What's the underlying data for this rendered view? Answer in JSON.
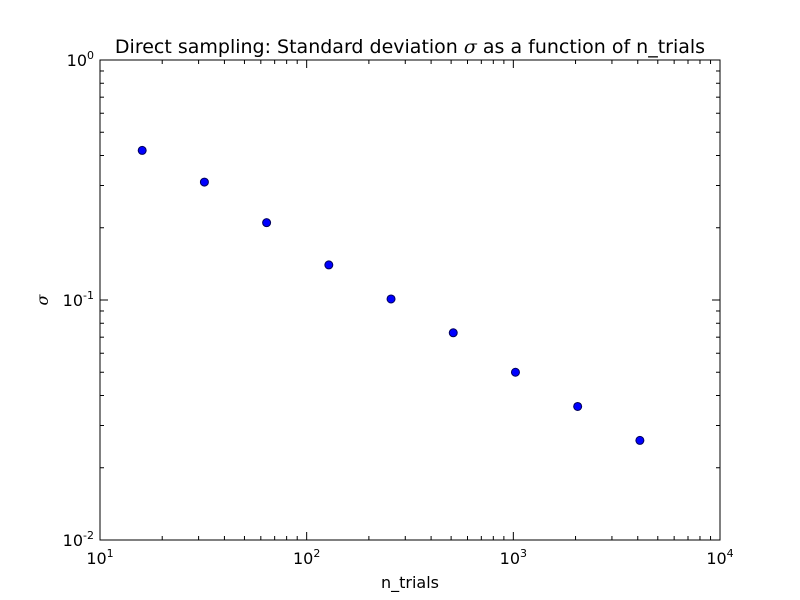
{
  "chart_data": {
    "type": "scatter",
    "title": {
      "prefix": "Direct sampling: Standard deviation ",
      "symbol": "σ",
      "suffix": " as a function of n_trials"
    },
    "xlabel": "n_trials",
    "ylabel": "σ",
    "xscale": "log",
    "yscale": "log",
    "xlim": [
      10,
      10000
    ],
    "ylim": [
      0.01,
      1
    ],
    "grid": false,
    "x_ticks": [
      {
        "base": "10",
        "exp": "1"
      },
      {
        "base": "10",
        "exp": "2"
      },
      {
        "base": "10",
        "exp": "3"
      },
      {
        "base": "10",
        "exp": "4"
      }
    ],
    "y_ticks": [
      {
        "base": "10",
        "exp": "-2"
      },
      {
        "base": "10",
        "exp": "-1"
      },
      {
        "base": "10",
        "exp": "0"
      }
    ],
    "marker_color": "#0000ff",
    "marker_edge_color": "#00005a",
    "x": [
      16,
      32,
      64,
      128,
      256,
      512,
      1024,
      2048,
      4096
    ],
    "y": [
      0.42,
      0.31,
      0.21,
      0.14,
      0.101,
      0.073,
      0.05,
      0.036,
      0.026
    ]
  }
}
